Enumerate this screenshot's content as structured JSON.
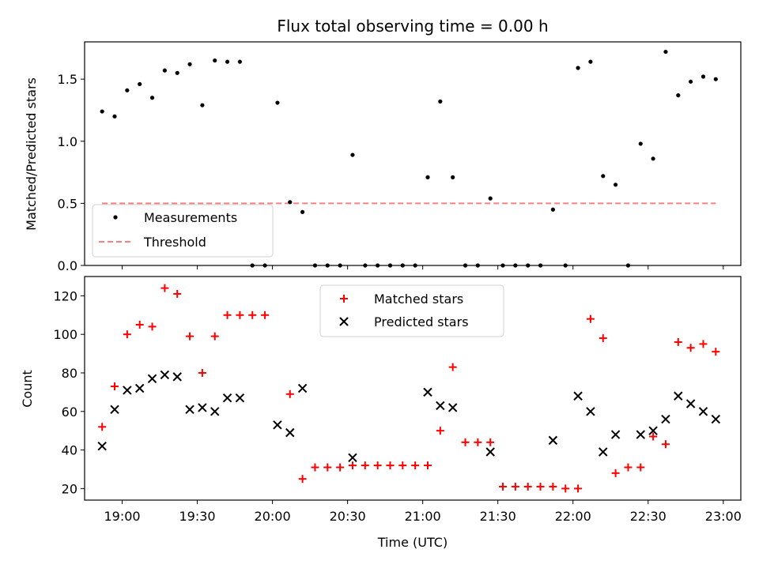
{
  "chart_data": [
    {
      "type": "scatter",
      "title": "Flux total observing time = 0.00 h",
      "xlabel": "",
      "ylabel": "Matched/Predicted stars",
      "ylim": [
        0,
        1.8
      ],
      "yticks": [
        0.0,
        0.5,
        1.0,
        1.5
      ],
      "ytick_labels": [
        "0.0",
        "0.5",
        "1.0",
        "1.5"
      ],
      "grid": false,
      "legend_position": "lower-left",
      "colors": {
        "measurements": "#000000",
        "threshold": "#f88080"
      },
      "series": [
        {
          "name": "Measurements",
          "x": [
            "18:52",
            "18:57",
            "19:02",
            "19:07",
            "19:12",
            "19:17",
            "19:22",
            "19:27",
            "19:32",
            "19:37",
            "19:42",
            "19:47",
            "19:52",
            "19:57",
            "20:02",
            "20:07",
            "20:12",
            "20:17",
            "20:22",
            "20:27",
            "20:32",
            "20:37",
            "20:42",
            "20:47",
            "20:52",
            "20:57",
            "21:02",
            "21:07",
            "21:12",
            "21:17",
            "21:22",
            "21:27",
            "21:32",
            "21:37",
            "21:42",
            "21:47",
            "21:52",
            "21:57",
            "22:02",
            "22:07",
            "22:12",
            "22:17",
            "22:22",
            "22:27",
            "22:32",
            "22:37",
            "22:42",
            "22:47",
            "22:52",
            "22:57"
          ],
          "y": [
            1.24,
            1.2,
            1.41,
            1.46,
            1.35,
            1.57,
            1.55,
            1.62,
            1.29,
            1.65,
            1.64,
            1.64,
            0.0,
            0.0,
            1.31,
            0.51,
            0.43,
            0.0,
            0.0,
            0.0,
            0.89,
            0.0,
            0.0,
            0.0,
            0.0,
            0.0,
            0.71,
            1.32,
            0.71,
            0.0,
            0.0,
            0.54,
            0.0,
            0.0,
            0.0,
            0.0,
            0.45,
            0.0,
            1.59,
            1.64,
            0.72,
            0.65,
            0.0,
            0.98,
            0.86,
            1.72,
            1.37,
            1.48,
            1.52,
            1.5
          ]
        },
        {
          "name": "Threshold",
          "x": [
            "18:52",
            "22:57"
          ],
          "y": [
            0.5,
            0.5
          ]
        }
      ]
    },
    {
      "type": "scatter",
      "title": "",
      "xlabel": "Time (UTC)",
      "ylabel": "Count",
      "ylim": [
        14,
        130
      ],
      "yticks": [
        20,
        40,
        60,
        80,
        100,
        120
      ],
      "ytick_labels": [
        "20",
        "40",
        "60",
        "80",
        "100",
        "120"
      ],
      "xlim": [
        "18:45",
        "23:07"
      ],
      "xticks": [
        "19:00",
        "19:30",
        "20:00",
        "20:30",
        "21:00",
        "21:30",
        "22:00",
        "22:30",
        "23:00"
      ],
      "xtick_labels": [
        "19:00",
        "19:30",
        "20:00",
        "20:30",
        "21:00",
        "21:30",
        "22:00",
        "22:30",
        "23:00"
      ],
      "grid": false,
      "legend_position": "top-center",
      "colors": {
        "matched": "#ff0000",
        "predicted": "#000000"
      },
      "series": [
        {
          "name": "Matched stars",
          "x": [
            "18:52",
            "18:57",
            "19:02",
            "19:07",
            "19:12",
            "19:17",
            "19:22",
            "19:27",
            "19:32",
            "19:37",
            "19:42",
            "19:47",
            "19:52",
            "19:57",
            "20:07",
            "20:12",
            "20:17",
            "20:22",
            "20:27",
            "20:32",
            "20:37",
            "20:42",
            "20:47",
            "20:52",
            "20:57",
            "21:02",
            "21:07",
            "21:12",
            "21:17",
            "21:22",
            "21:27",
            "21:32",
            "21:37",
            "21:42",
            "21:47",
            "21:52",
            "21:57",
            "22:02",
            "22:07",
            "22:12",
            "22:17",
            "22:22",
            "22:27",
            "22:32",
            "22:37",
            "22:42",
            "22:47",
            "22:52",
            "22:57"
          ],
          "y": [
            52,
            73,
            100,
            105,
            104,
            124,
            121,
            99,
            80,
            99,
            110,
            110,
            110,
            110,
            69,
            25,
            31,
            31,
            31,
            32,
            32,
            32,
            32,
            32,
            32,
            32,
            50,
            83,
            44,
            44,
            44,
            21,
            21,
            21,
            21,
            21,
            20,
            20,
            108,
            98,
            28,
            31,
            31,
            47,
            43,
            96,
            93,
            95,
            91
          ]
        },
        {
          "name": "Predicted stars",
          "x": [
            "18:52",
            "18:57",
            "19:02",
            "19:07",
            "19:12",
            "19:17",
            "19:22",
            "19:27",
            "19:32",
            "19:37",
            "19:42",
            "19:47",
            "20:02",
            "20:07",
            "20:12",
            "20:32",
            "21:02",
            "21:07",
            "21:12",
            "21:27",
            "21:52",
            "22:02",
            "22:07",
            "22:12",
            "22:17",
            "22:27",
            "22:32",
            "22:37",
            "22:42",
            "22:47",
            "22:52",
            "22:57"
          ],
          "y": [
            42,
            61,
            71,
            72,
            77,
            79,
            78,
            61,
            62,
            60,
            67,
            67,
            53,
            49,
            72,
            36,
            70,
            63,
            62,
            39,
            45,
            68,
            60,
            39,
            48,
            48,
            50,
            56,
            68,
            64,
            60,
            56
          ]
        }
      ]
    }
  ]
}
